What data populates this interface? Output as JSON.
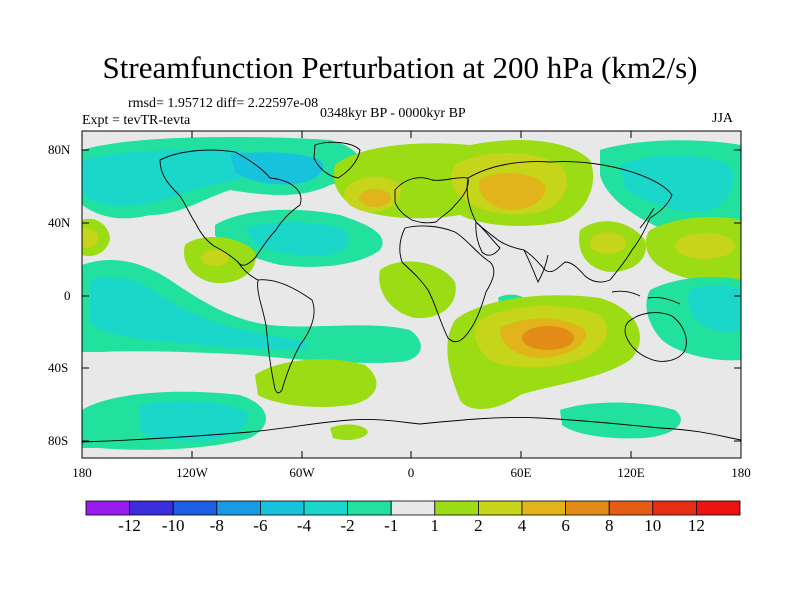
{
  "title": "Streamfunction Perturbation at 200 hPa (km2/s)",
  "stats": "rmsd= 1.95712 diff= 2.22597e-08",
  "experiment": "Expt = tevTR-tevta",
  "period": "0348kyr BP - 0000kyr BP",
  "season": "JJA",
  "lat_ticks": [
    "80N",
    "40N",
    "0",
    "40S",
    "80S"
  ],
  "lon_ticks": [
    "180",
    "120W",
    "60W",
    "0",
    "60E",
    "120E",
    "180"
  ],
  "colorbar": {
    "labels": [
      "-12",
      "-10",
      "-8",
      "-6",
      "-4",
      "-2",
      "-1",
      "1",
      "2",
      "4",
      "6",
      "8",
      "10",
      "12"
    ],
    "colors": [
      "#9a1bef",
      "#3b2ddb",
      "#1e5ee6",
      "#1a9ae6",
      "#17c2dd",
      "#1bd7ca",
      "#22e19e",
      "#e8e8e8",
      "#9cdc14",
      "#c6d41a",
      "#e0b41a",
      "#e28b17",
      "#e45c15",
      "#e62e12",
      "#ec1410"
    ]
  }
}
